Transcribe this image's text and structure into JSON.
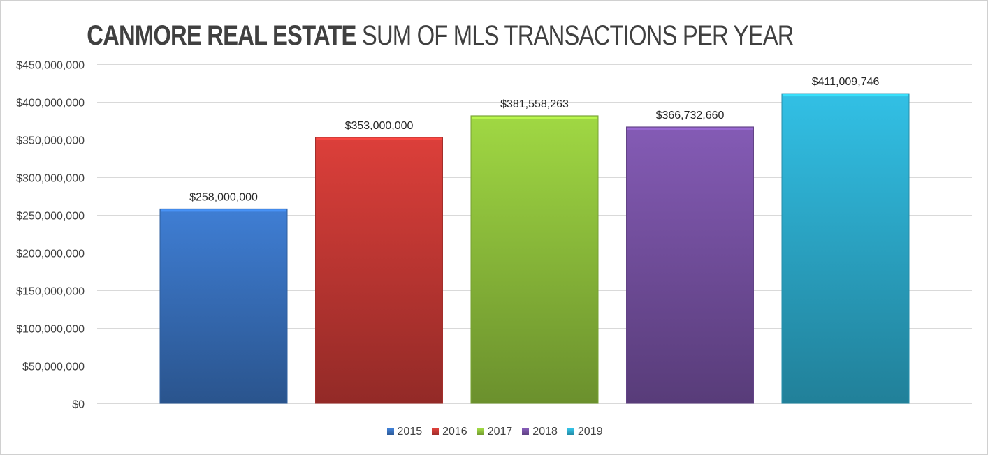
{
  "title": {
    "bold": "CANMORE REAL ESTATE",
    "rest": "SUM OF MLS TRANSACTIONS PER YEAR"
  },
  "chart_data": {
    "type": "bar",
    "title": "CANMORE REAL ESTATE SUM OF MLS TRANSACTIONS PER YEAR",
    "xlabel": "",
    "ylabel": "",
    "ylim": [
      0,
      450000000
    ],
    "yticks": [
      0,
      50000000,
      100000000,
      150000000,
      200000000,
      250000000,
      300000000,
      350000000,
      400000000,
      450000000
    ],
    "ytick_labels": [
      "$0",
      "$50,000,000",
      "$100,000,000",
      "$150,000,000",
      "$200,000,000",
      "$250,000,000",
      "$300,000,000",
      "$350,000,000",
      "$400,000,000",
      "$450,000,000"
    ],
    "grid": true,
    "legend_position": "bottom",
    "series": [
      {
        "name": "2015",
        "values": [
          258000000
        ],
        "label": "$258,000,000",
        "color": "#3a75c4"
      },
      {
        "name": "2016",
        "values": [
          353000000
        ],
        "label": "$353,000,000",
        "color": "#cc3a36"
      },
      {
        "name": "2017",
        "values": [
          381558263
        ],
        "label": "$381,558,263",
        "color": "#94c83e"
      },
      {
        "name": "2018",
        "values": [
          366732660
        ],
        "label": "$366,732,660",
        "color": "#7a54a8"
      },
      {
        "name": "2019",
        "values": [
          411009746
        ],
        "label": "$411,009,746",
        "color": "#2eb2d4"
      }
    ]
  }
}
